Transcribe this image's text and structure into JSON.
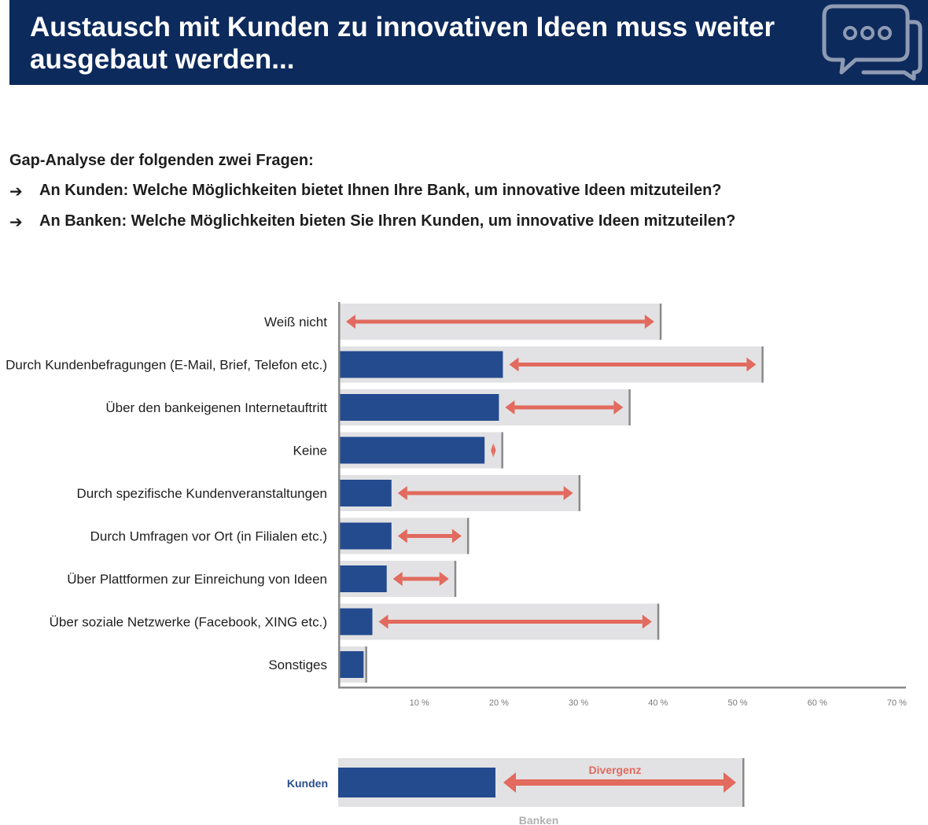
{
  "header": {
    "title": "Austausch mit Kunden zu innovativen Ideen muss weiter ausgebaut werden...",
    "background": "#0d2a5c",
    "icon": "chat-bubbles-icon"
  },
  "intro": {
    "heading": "Gap-Analyse der folgenden zwei Fragen:",
    "questions": [
      "An Kunden: Welche Möglichkeiten bietet Ihnen Ihre Bank, um innovative Ideen mitzuteilen?",
      "An Banken: Welche Möglichkeiten bieten Sie Ihren Kunden, um innovative Ideen mitzuteilen?"
    ],
    "bullet_icon": "arrow-right-icon"
  },
  "chart_data": {
    "type": "bar",
    "orientation": "horizontal",
    "categories": [
      "Weiß nicht",
      "Durch Kundenbefragungen (E-Mail, Brief, Telefon etc.)",
      "Über den bankeigenen Internetauftritt",
      "Keine",
      "Durch spezifische Kundenveranstaltungen",
      "Durch Umfragen vor Ort (in Filialen etc.)",
      "Über Plattformen zur Einreichung von Ideen",
      "Über soziale Netzwerke (Facebook, XING etc.)",
      "Sonstiges"
    ],
    "series": [
      {
        "name": "Kunden",
        "values": [
          0,
          20.5,
          20,
          18.2,
          6.5,
          6.5,
          5.9,
          4.1,
          3.0
        ],
        "color": "#234b8e"
      },
      {
        "name": "Banken",
        "values": [
          40.3,
          53.1,
          36.4,
          20.4,
          30.1,
          16.1,
          14.5,
          40.0,
          3.3
        ],
        "color": "#e2e2e4"
      }
    ],
    "gap_arrow_color": "#e26a5e",
    "xlim": [
      0,
      70
    ],
    "xticks": [
      10,
      20,
      30,
      40,
      50,
      60,
      70
    ],
    "xtick_labels": [
      "10 %",
      "20 %",
      "30 %",
      "40 %",
      "50 %",
      "60 %",
      "70 %"
    ],
    "grid": false
  },
  "legend": {
    "kunden_label": "Kunden",
    "banken_label": "Banken",
    "divergenz_label": "Divergenz",
    "kunden_color": "#2a4f8f",
    "banken_color": "#b0b0b0",
    "divergenz_color": "#e26a5e"
  }
}
